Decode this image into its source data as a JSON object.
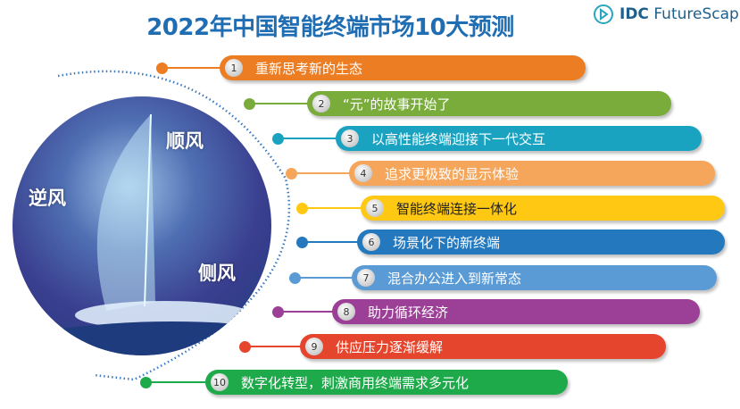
{
  "title": "2022年中国智能终端市场10大预测",
  "logo": {
    "brand": "IDC",
    "product": "FutureScap",
    "icon": "play-circle-icon"
  },
  "image_labels": {
    "headwind": "逆风",
    "tailwind": "顺风",
    "crosswind": "侧风"
  },
  "predictions": [
    {
      "n": "1",
      "text": "重新思考新的生态",
      "color": "#ED7D22"
    },
    {
      "n": "2",
      "text": "“元”的故事开始了",
      "color": "#7AAC3C"
    },
    {
      "n": "3",
      "text": "以高性能终端迎接下一代交互",
      "color": "#1AA3C1"
    },
    {
      "n": "4",
      "text": "追求更极致的显示体验",
      "color": "#F5A65B"
    },
    {
      "n": "5",
      "text": "智能终端连接一体化",
      "color": "#FFC913",
      "textColor": "#222"
    },
    {
      "n": "6",
      "text": "场景化下的新终端",
      "color": "#2478BD"
    },
    {
      "n": "7",
      "text": "混合办公进入到新常态",
      "color": "#5B9BD5"
    },
    {
      "n": "8",
      "text": "助力循环经济",
      "color": "#9B3F97"
    },
    {
      "n": "9",
      "text": "供应压力逐渐缓解",
      "color": "#E5452C"
    },
    {
      "n": "10",
      "text": "数字化转型，刺激商用终端需求多元化",
      "color": "#1EAA4A"
    }
  ]
}
